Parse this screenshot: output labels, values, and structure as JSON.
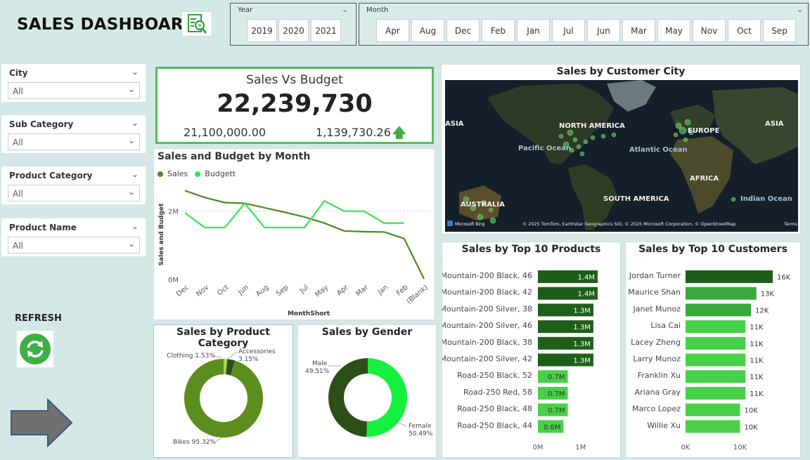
{
  "header": {
    "title": "SALES DASHBOARD",
    "year_slicer": {
      "label": "Year",
      "options": [
        "2019",
        "2020",
        "2021"
      ]
    },
    "month_slicer": {
      "label": "Month",
      "options": [
        "Apr",
        "Aug",
        "Dec",
        "Feb",
        "Jan",
        "Jul",
        "Jun",
        "Mar",
        "May",
        "Nov",
        "Oct",
        "Sep"
      ]
    }
  },
  "filters": [
    {
      "label": "City",
      "value": "All"
    },
    {
      "label": "Sub Category",
      "value": "All"
    },
    {
      "label": "Product Category",
      "value": "All"
    },
    {
      "label": "Product Name",
      "value": "All"
    }
  ],
  "refresh": {
    "label": "REFRESH"
  },
  "kpi": {
    "title": "Sales Vs Budget",
    "value": "22,239,730",
    "budget": "21,100,000.00",
    "variance": "1,139,730.26"
  },
  "colors": {
    "sales": "#4e8a21",
    "budget": "#2ee84f",
    "dark_bar": "#1e5e1a",
    "light_bar": "#48d048",
    "kpi_border": "#5cb85c"
  },
  "map": {
    "title": "Sales by Customer City",
    "labels": [
      "NORTH AMERICA",
      "SOUTH AMERICA",
      "EUROPE",
      "AFRICA",
      "ASIA",
      "ASIA",
      "AUSTRALIA",
      "Pacific Ocean",
      "Atlantic Ocean",
      "Indian Ocean"
    ],
    "attribution": "© 2025 TomTom, Earthstar Geographics SIO, © 2025 Microsoft Corporation, © OpenStreetMap",
    "terms": "Terms",
    "logo": "Microsoft Bing"
  },
  "chart_data": [
    {
      "type": "line",
      "title": "Sales and Budget by Month",
      "xlabel": "MonthShort",
      "ylabel": "Sales and Budget",
      "categories": [
        "Dec",
        "Nov",
        "Oct",
        "Jun",
        "Aug",
        "Sep",
        "Jul",
        "May",
        "Apr",
        "Mar",
        "Jan",
        "Feb",
        "(Blank)"
      ],
      "ylim": [
        0,
        3000000
      ],
      "yticks": [
        "0M",
        "2M"
      ],
      "series": [
        {
          "name": "Sales",
          "values": [
            2600000,
            2400000,
            2250000,
            2230000,
            2100000,
            1970000,
            1830000,
            1650000,
            1420000,
            1400000,
            1390000,
            1200000,
            20000
          ]
        },
        {
          "name": "Budgett",
          "values": [
            1950000,
            1520000,
            1520000,
            2230000,
            1520000,
            1520000,
            1520000,
            2300000,
            2000000,
            2000000,
            1650000,
            1650000,
            null
          ]
        }
      ]
    },
    {
      "type": "pie",
      "title": "Sales by Product Category",
      "labels": [
        "Bikes 95.32%",
        "Clothing 1.53%",
        "Accessories 3.15%"
      ],
      "values": [
        95.32,
        1.53,
        3.15
      ]
    },
    {
      "type": "pie",
      "title": "Sales by Gender",
      "labels": [
        "Female 50.49%",
        "Male 49.51%"
      ],
      "values": [
        50.49,
        49.51
      ]
    },
    {
      "type": "bar",
      "title": "Sales by Top 10 Products",
      "categories": [
        "Mountain-200 Black, 46",
        "Mountain-200 Black, 42",
        "Mountain-200 Silver, 38",
        "Mountain-200 Silver, 46",
        "Mountain-200 Black, 38",
        "Mountain-200 Silver, 42",
        "Road-250 Black, 52",
        "Road-250 Red, 58",
        "Road-250 Black, 48",
        "Road-250 Black, 44"
      ],
      "values": [
        1400000,
        1400000,
        1300000,
        1300000,
        1300000,
        1300000,
        700000,
        700000,
        700000,
        600000
      ],
      "data_labels": [
        "1.4M",
        "1.4M",
        "1.3M",
        "1.3M",
        "1.3M",
        "1.3M",
        "0.7M",
        "0.7M",
        "0.7M",
        "0.6M"
      ],
      "xticks": [
        "0M",
        "1M"
      ],
      "xlim": [
        0,
        1000000
      ]
    },
    {
      "type": "bar",
      "title": "Sales by Top 10 Customers",
      "categories": [
        "Jordan Turner",
        "Maurice Shan",
        "Janet Munoz",
        "Lisa Cai",
        "Lacey Zheng",
        "Larry Munoz",
        "Franklin Xu",
        "Ariana Gray",
        "Marco Lopez",
        "Willie Xu"
      ],
      "values": [
        16000,
        13000,
        12000,
        11000,
        11000,
        11000,
        11000,
        11000,
        10000,
        10000
      ],
      "data_labels": [
        "16K",
        "13K",
        "12K",
        "11K",
        "11K",
        "11K",
        "11K",
        "11K",
        "10K",
        "10K"
      ],
      "xticks": [
        "0K",
        "10K"
      ],
      "xlim": [
        0,
        10000
      ]
    }
  ]
}
